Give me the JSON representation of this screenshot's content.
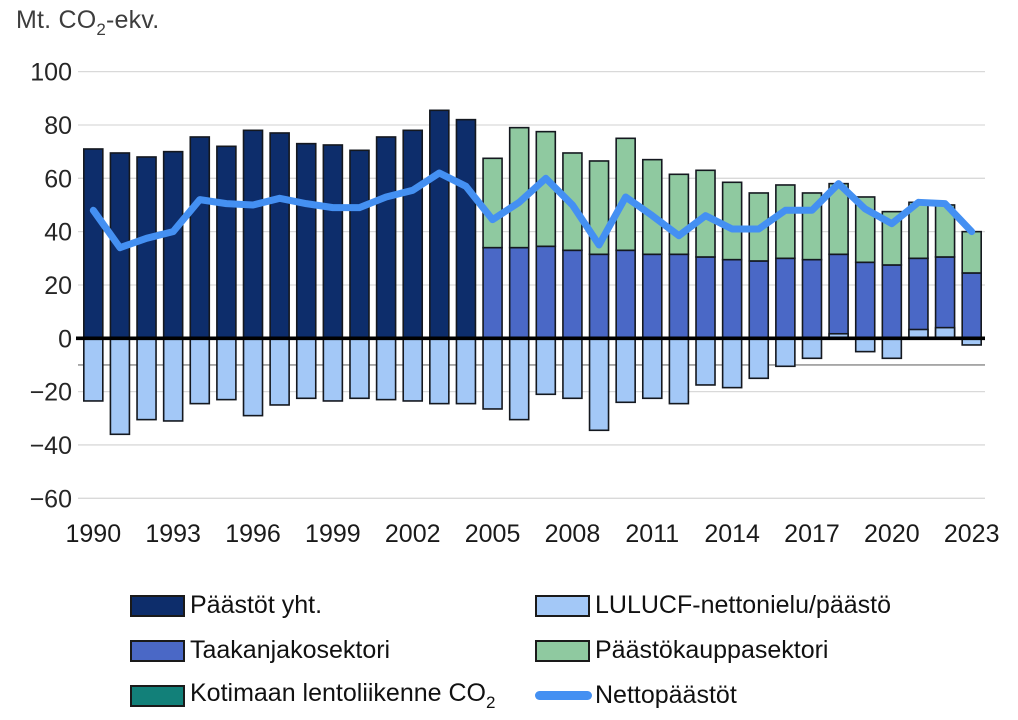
{
  "unit": {
    "prefix": "Mt. CO",
    "sub": "2",
    "suffix": "-ekv."
  },
  "legend": {
    "items": [
      {
        "id": "paastot-yht",
        "label": "Päästöt yht.",
        "label_sub": "",
        "swatch": "box",
        "color": "#0d2d6b"
      },
      {
        "id": "lulucf",
        "label": "LULUCF-nettonielu/päästö",
        "label_sub": "",
        "swatch": "box",
        "color": "#a3c8f7"
      },
      {
        "id": "taakanjakosektori",
        "label": "Taakanjakosektori",
        "label_sub": "",
        "swatch": "box",
        "color": "#4a68c6"
      },
      {
        "id": "paastokauppasektori",
        "label": "Päästökauppasektori",
        "label_sub": "",
        "swatch": "box",
        "color": "#8fc9a0"
      },
      {
        "id": "kotimaan-lentoliikenne",
        "label": "Kotimaan lentoliikenne CO",
        "label_sub": "2",
        "swatch": "box",
        "color": "#128079"
      },
      {
        "id": "nettopaastot",
        "label": "Nettopäästöt",
        "label_sub": "",
        "swatch": "line",
        "color": "#4490f2"
      }
    ]
  },
  "chart_data": {
    "type": "bar",
    "subtype": "stacked-bars-with-line",
    "title": "Mt. CO2-ekv.",
    "years": [
      1990,
      1991,
      1992,
      1993,
      1994,
      1995,
      1996,
      1997,
      1998,
      1999,
      2000,
      2001,
      2002,
      2003,
      2004,
      2005,
      2006,
      2007,
      2008,
      2009,
      2010,
      2011,
      2012,
      2013,
      2014,
      2015,
      2016,
      2017,
      2018,
      2019,
      2020,
      2021,
      2022,
      2023
    ],
    "x_tick_labels": [
      "1990",
      "1993",
      "1996",
      "1999",
      "2002",
      "2005",
      "2008",
      "2011",
      "2014",
      "2017",
      "2020",
      "2023"
    ],
    "y_tick_values": [
      100,
      80,
      60,
      40,
      20,
      0,
      -20,
      -40,
      -60
    ],
    "y_tick_labels": [
      "100",
      "80",
      "60",
      "40",
      "20",
      "0",
      "−20",
      "−40",
      "−60"
    ],
    "ylim": [
      -60,
      100
    ],
    "grid": true,
    "zero_line": true,
    "reference_line_y": -10,
    "legend_position": "bottom",
    "series": [
      {
        "name": "Päästöt yht.",
        "id": "paastot-yht",
        "type": "bar",
        "stack": "single",
        "color": "#0d2d6b",
        "values": [
          71,
          69.5,
          68,
          70,
          75.5,
          72,
          78,
          77,
          73,
          72.5,
          70.5,
          75.5,
          78,
          85.5,
          82,
          null,
          null,
          null,
          null,
          null,
          null,
          null,
          null,
          null,
          null,
          null,
          null,
          null,
          null,
          null,
          null,
          null,
          null,
          null
        ]
      },
      {
        "name": "Taakanjakosektori",
        "id": "taakanjakosektori",
        "type": "bar",
        "stack": "pos",
        "color": "#4a68c6",
        "values": [
          null,
          null,
          null,
          null,
          null,
          null,
          null,
          null,
          null,
          null,
          null,
          null,
          null,
          null,
          null,
          34,
          34,
          34.5,
          33,
          31.5,
          33,
          31.5,
          31.5,
          30.5,
          29.5,
          29,
          30,
          29.5,
          31.5,
          28.5,
          27.5,
          30,
          30.5,
          24.5
        ]
      },
      {
        "name": "Päästökauppasektori",
        "id": "paastokauppasektori",
        "type": "bar",
        "stack": "pos",
        "color": "#8fc9a0",
        "values": [
          null,
          null,
          null,
          null,
          null,
          null,
          null,
          null,
          null,
          null,
          null,
          null,
          null,
          null,
          null,
          33.5,
          45,
          43,
          36.5,
          35,
          42,
          35.5,
          30,
          32.5,
          29,
          25.5,
          27.5,
          25,
          26.5,
          24.5,
          20,
          21,
          19.5,
          15.5
        ]
      },
      {
        "name": "Kotimaan lentoliikenne CO2",
        "id": "kotimaan-lentoliikenne",
        "type": "bar",
        "stack": "pos",
        "color": "#128079",
        "note": "segments too small to be visible at chart scale",
        "values": [
          null,
          null,
          null,
          null,
          null,
          null,
          null,
          null,
          null,
          null,
          null,
          null,
          null,
          null,
          null,
          0,
          0,
          0,
          0,
          0,
          0,
          0,
          0,
          0,
          0,
          0,
          0,
          0,
          0,
          0,
          0,
          0,
          0,
          0
        ]
      },
      {
        "name": "LULUCF-nettonielu/päästö",
        "id": "lulucf",
        "type": "bar",
        "stack": "signed",
        "color": "#a3c8f7",
        "values": [
          -23.5,
          -36,
          -30.5,
          -31,
          -24.5,
          -23,
          -29,
          -25,
          -22.5,
          -23.5,
          -22.5,
          -23,
          -23.5,
          -24.5,
          -24.5,
          -26.5,
          -30.5,
          -21,
          -22.5,
          -34.5,
          -24,
          -22.5,
          -24.5,
          -17.5,
          -18.5,
          -15,
          -10.5,
          -7.5,
          1.7,
          -5,
          -7.5,
          3.3,
          4,
          -2.5
        ]
      },
      {
        "name": "Nettopäästöt",
        "id": "nettopaastot",
        "type": "line",
        "color": "#4490f2",
        "values": [
          48,
          34,
          37.5,
          40,
          52,
          50.5,
          50,
          52.5,
          50.5,
          49,
          49,
          53,
          55.5,
          62,
          57,
          44.5,
          51,
          60,
          50,
          35,
          53,
          46,
          38.5,
          46,
          41,
          41,
          48,
          48,
          58,
          48.5,
          43,
          51,
          50.5,
          40
        ]
      }
    ]
  }
}
